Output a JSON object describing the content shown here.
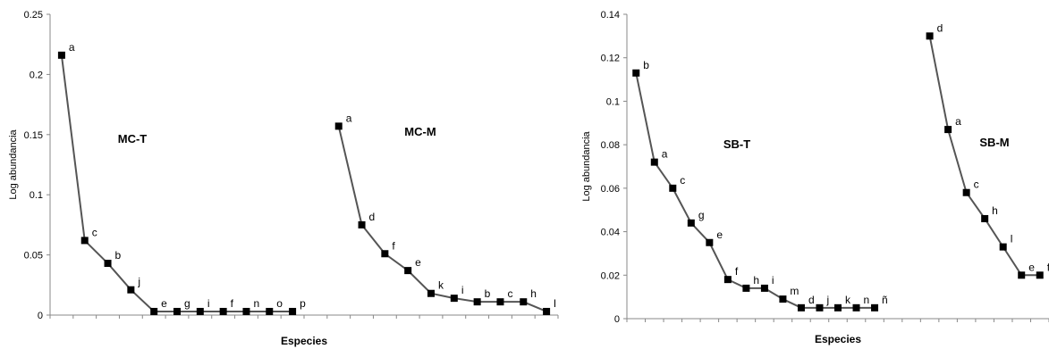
{
  "chart_data": [
    {
      "type": "line",
      "title": "",
      "xlabel": "Especies",
      "ylabel": "Log abundancia",
      "ylim": [
        0,
        0.25
      ],
      "yticks": [
        0,
        0.05,
        0.1,
        0.15,
        0.2,
        0.25
      ],
      "ytick_labels": [
        "0",
        "0.05",
        "0.1",
        "0.15",
        "0.2",
        "0.25"
      ],
      "legend": false,
      "grid": false,
      "series": [
        {
          "name": "MC-T",
          "color": "#555555",
          "x": [
            1,
            2,
            3,
            4,
            5,
            6,
            7,
            8,
            9,
            10,
            11
          ],
          "labels": [
            "a",
            "c",
            "b",
            "j",
            "e",
            "g",
            "i",
            "f",
            "n",
            "o",
            "p"
          ],
          "values": [
            0.216,
            0.062,
            0.043,
            0.021,
            0.003,
            0.003,
            0.003,
            0.003,
            0.003,
            0.003,
            0.003
          ]
        },
        {
          "name": "MC-M",
          "color": "#555555",
          "x": [
            13,
            14,
            15,
            16,
            17,
            18,
            19,
            20,
            21,
            22
          ],
          "labels": [
            "a",
            "d",
            "f",
            "e",
            "k",
            "i",
            "b",
            "c",
            "h",
            "l"
          ],
          "values": [
            0.157,
            0.075,
            0.051,
            0.037,
            0.018,
            0.014,
            0.011,
            0.011,
            0.011,
            0.003
          ]
        }
      ]
    },
    {
      "type": "line",
      "title": "",
      "xlabel": "Especies",
      "ylabel": "Log abundancia",
      "ylim": [
        0,
        0.14
      ],
      "yticks": [
        0,
        0.02,
        0.04,
        0.06,
        0.08,
        0.1,
        0.12,
        0.14
      ],
      "ytick_labels": [
        "0",
        "0.02",
        "0.04",
        "0.06",
        "0.08",
        "0.1",
        "0.12",
        "0.14"
      ],
      "legend": false,
      "grid": false,
      "series": [
        {
          "name": "SB-T",
          "color": "#555555",
          "x": [
            1,
            2,
            3,
            4,
            5,
            6,
            7,
            8,
            9,
            10,
            11,
            12,
            13,
            14
          ],
          "labels": [
            "b",
            "a",
            "c",
            "g",
            "e",
            "f",
            "h",
            "i",
            "m",
            "d",
            "j",
            "k",
            "n",
            "ñ"
          ],
          "values": [
            0.113,
            0.072,
            0.06,
            0.044,
            0.035,
            0.018,
            0.014,
            0.014,
            0.009,
            0.005,
            0.005,
            0.005,
            0.005,
            0.005
          ]
        },
        {
          "name": "SB-M",
          "color": "#555555",
          "x": [
            17,
            18,
            19,
            20,
            21,
            22,
            23
          ],
          "labels": [
            "d",
            "a",
            "c",
            "h",
            "l",
            "e",
            "f"
          ],
          "values": [
            0.13,
            0.087,
            0.058,
            0.046,
            0.033,
            0.02,
            0.02
          ]
        }
      ]
    }
  ]
}
